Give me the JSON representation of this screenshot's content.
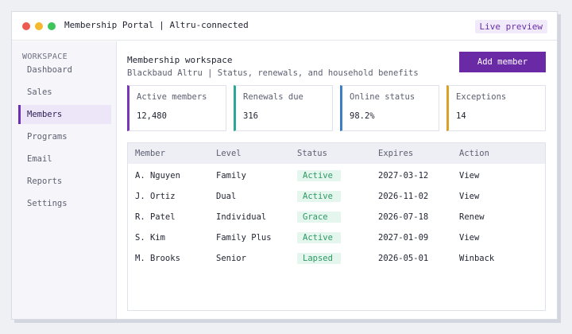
{
  "window": {
    "title": "Membership Portal  |  Altru-connected",
    "badge": "Live preview"
  },
  "sidebar": {
    "section_label": "WORKSPACE",
    "items": [
      {
        "label": "Dashboard"
      },
      {
        "label": "Sales"
      },
      {
        "label": "Members"
      },
      {
        "label": "Programs"
      },
      {
        "label": "Email"
      },
      {
        "label": "Reports"
      },
      {
        "label": "Settings"
      }
    ],
    "active_item": "Members"
  },
  "header": {
    "title": "Membership workspace",
    "subtitle": "Blackbaud Altru  |  Status, renewals, and household benefits",
    "add_button_label": "Add member"
  },
  "stats": [
    {
      "label": "Active members",
      "value": "12,480",
      "accent": "#7b35b8"
    },
    {
      "label": "Renewals due",
      "value": "316",
      "accent": "#2ea59a"
    },
    {
      "label": "Online status",
      "value": "98.2%",
      "accent": "#3b7ec4"
    },
    {
      "label": "Exceptions",
      "value": "14",
      "accent": "#d9a12a"
    }
  ],
  "table": {
    "columns": [
      "Member",
      "Level",
      "Status",
      "Expires",
      "Action"
    ],
    "rows": [
      {
        "member": "A. Nguyen",
        "level": "Family",
        "status": "Active",
        "expires": "2027-03-12",
        "action": "View"
      },
      {
        "member": "J. Ortiz",
        "level": "Dual",
        "status": "Active",
        "expires": "2026-11-02",
        "action": "View"
      },
      {
        "member": "R. Patel",
        "level": "Individual",
        "status": "Grace",
        "expires": "2026-07-18",
        "action": "Renew"
      },
      {
        "member": "S. Kim",
        "level": "Family Plus",
        "status": "Active",
        "expires": "2027-01-09",
        "action": "View"
      },
      {
        "member": "M. Brooks",
        "level": "Senior",
        "status": "Lapsed",
        "expires": "2026-05-01",
        "action": "Winback"
      }
    ]
  },
  "colors": {
    "brand": "#6a2aa6",
    "status_text": "#2c9a62",
    "status_bg": "#e5f6ee"
  }
}
